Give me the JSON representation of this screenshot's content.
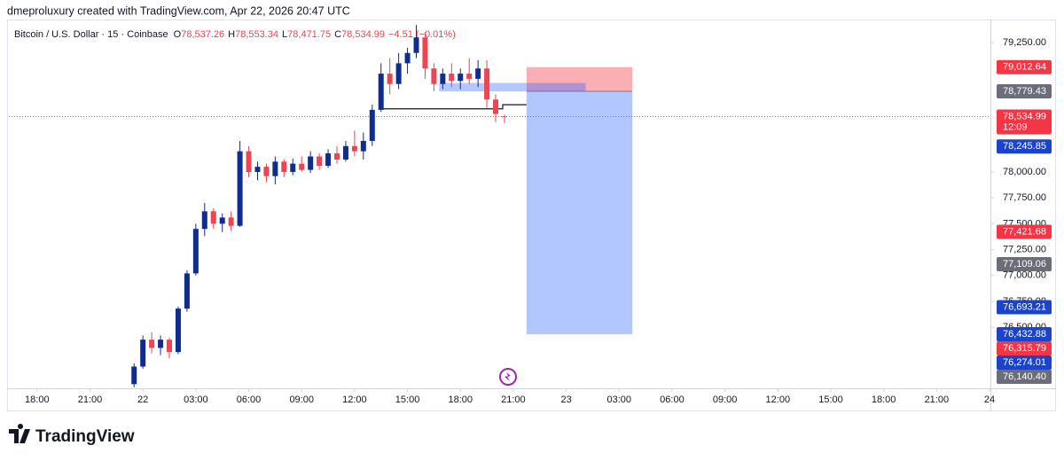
{
  "header": {
    "credit": "dmeproluxury created with TradingView.com, Apr 22, 2026 20:47 UTC"
  },
  "footer": {
    "brand": "TradingView"
  },
  "chart_data": {
    "type": "candlestick",
    "symbol": "Bitcoin / U.S. Dollar · 15 · Coinbase",
    "ohlc_legend": [
      {
        "key": "O",
        "value": "78,537.26"
      },
      {
        "key": "H",
        "value": "78,553.34"
      },
      {
        "key": "L",
        "value": "78,471.75"
      },
      {
        "key": "C",
        "value": "78,534.99"
      }
    ],
    "change": "−4.51 (−0.01%)",
    "up_color": "#0f2d8f",
    "down_color": "#ef4451",
    "x": [
      5.5,
      6,
      6.5,
      7,
      7.5,
      8,
      8.5,
      9,
      9.5,
      10,
      10.5,
      11,
      11.5,
      12,
      12.5,
      13,
      13.5,
      14,
      14.5,
      15,
      15.5,
      16,
      16.5,
      17,
      17.5,
      18,
      18.5,
      19,
      19.5,
      20,
      20.5,
      21,
      21.5,
      22,
      22.5,
      23,
      23.5,
      24,
      24.5,
      25,
      25.5,
      26,
      26.5
    ],
    "candles": [
      [
        75950,
        76150,
        75920,
        76120
      ],
      [
        76120,
        76420,
        76100,
        76380
      ],
      [
        76380,
        76450,
        76250,
        76300
      ],
      [
        76300,
        76420,
        76230,
        76380
      ],
      [
        76380,
        76400,
        76200,
        76260
      ],
      [
        76260,
        76700,
        76240,
        76680
      ],
      [
        76680,
        77050,
        76650,
        77020
      ],
      [
        77020,
        77500,
        77000,
        77450
      ],
      [
        77450,
        77700,
        77380,
        77620
      ],
      [
        77620,
        77650,
        77450,
        77500
      ],
      [
        77500,
        77600,
        77420,
        77560
      ],
      [
        77560,
        77620,
        77430,
        77480
      ],
      [
        77480,
        78300,
        77470,
        78200
      ],
      [
        78200,
        78250,
        77950,
        78000
      ],
      [
        78000,
        78100,
        77920,
        78050
      ],
      [
        78050,
        78080,
        77900,
        77960
      ],
      [
        77960,
        78150,
        77880,
        78100
      ],
      [
        78100,
        78120,
        77950,
        78000
      ],
      [
        78000,
        78130,
        77970,
        78080
      ],
      [
        78080,
        78150,
        78000,
        78020
      ],
      [
        78020,
        78200,
        77990,
        78150
      ],
      [
        78150,
        78180,
        78020,
        78060
      ],
      [
        78060,
        78220,
        78040,
        78180
      ],
      [
        78180,
        78250,
        78080,
        78120
      ],
      [
        78120,
        78300,
        78100,
        78250
      ],
      [
        78250,
        78400,
        78150,
        78200
      ],
      [
        78200,
        78380,
        78120,
        78300
      ],
      [
        78300,
        78650,
        78250,
        78600
      ],
      [
        78600,
        79050,
        78580,
        78950
      ],
      [
        78950,
        79100,
        78750,
        78850
      ],
      [
        78850,
        79150,
        78800,
        79050
      ],
      [
        79050,
        79200,
        78950,
        79150
      ],
      [
        79150,
        79420,
        79100,
        79300
      ],
      [
        79300,
        79350,
        78900,
        79000
      ],
      [
        79000,
        79050,
        78780,
        78850
      ],
      [
        78850,
        79000,
        78800,
        78950
      ],
      [
        78950,
        79050,
        78820,
        78880
      ],
      [
        78880,
        79000,
        78800,
        78950
      ],
      [
        78950,
        79100,
        78850,
        78900
      ],
      [
        78900,
        79080,
        78820,
        79000
      ],
      [
        79000,
        79080,
        78620,
        78700
      ],
      [
        78700,
        78750,
        78480,
        78560
      ],
      [
        78537.26,
        78553.34,
        78471.75,
        78534.99
      ]
    ],
    "last_price": 78534.99,
    "position": {
      "entry": 78779.43,
      "stop": 79012.64,
      "target": 76432.88,
      "x": [
        27.75,
        33.75
      ]
    },
    "zone": {
      "x": [
        22.8,
        31.1
      ],
      "y": [
        78779.43,
        78860
      ]
    },
    "step_line": {
      "x": [
        19.5,
        26.4,
        26.4,
        27.75
      ],
      "y": [
        78610,
        78610,
        78650,
        78650
      ]
    },
    "xlim": [
      -1.6,
      54.05
    ],
    "ylim": [
      75910,
      79473
    ],
    "xticks": [
      {
        "value": 0,
        "label": "18:00"
      },
      {
        "value": 3,
        "label": "21:00"
      },
      {
        "value": 6,
        "label": "22"
      },
      {
        "value": 9,
        "label": "03:00"
      },
      {
        "value": 12,
        "label": "06:00"
      },
      {
        "value": 15,
        "label": "09:00"
      },
      {
        "value": 18,
        "label": "12:00"
      },
      {
        "value": 21,
        "label": "15:00"
      },
      {
        "value": 24,
        "label": "18:00"
      },
      {
        "value": 27,
        "label": "21:00"
      },
      {
        "value": 30,
        "label": "23"
      },
      {
        "value": 33,
        "label": "03:00"
      },
      {
        "value": 36,
        "label": "06:00"
      },
      {
        "value": 39,
        "label": "09:00"
      },
      {
        "value": 42,
        "label": "12:00"
      },
      {
        "value": 45,
        "label": "15:00"
      },
      {
        "value": 48,
        "label": "18:00"
      },
      {
        "value": 51,
        "label": "21:00"
      },
      {
        "value": 54,
        "label": "24"
      }
    ],
    "yticks": [
      {
        "value": 79250,
        "label": "79,250.00"
      },
      {
        "value": 78000,
        "label": "78,000.00"
      },
      {
        "value": 77750,
        "label": "77,750.00"
      },
      {
        "value": 77500,
        "label": "77,500.00"
      },
      {
        "value": 77250,
        "label": "77,250.00"
      },
      {
        "value": 77000,
        "label": "77,000.00"
      },
      {
        "value": 76750,
        "label": "76,750.00"
      },
      {
        "value": 76500,
        "label": "76,500.00"
      }
    ],
    "price_labels": [
      {
        "value": 79012.64,
        "label": "79,012.64",
        "color": "#f23645"
      },
      {
        "value": 78779.43,
        "label": "78,779.43",
        "color": "#6b6e78"
      },
      {
        "value": 78534.99,
        "label": "78,534.99",
        "countdown": "12:09",
        "color": "#f23645"
      },
      {
        "value": 78245.85,
        "label": "78,245.85",
        "color": "#1c44c8"
      },
      {
        "value": 77421.68,
        "label": "77,421.68",
        "color": "#f23645"
      },
      {
        "value": 77109.06,
        "label": "77,109.06",
        "color": "#6b6e78"
      },
      {
        "value": 76693.21,
        "label": "76,693.21",
        "color": "#1c44c8"
      },
      {
        "value": 76432.88,
        "label": "76,432.88",
        "color": "#1c44c8"
      },
      {
        "value": 76315.79,
        "label": "76,315.79",
        "color": "#f23645"
      },
      {
        "value": 76274.01,
        "label": "76,274.01",
        "color": "#1c44c8"
      },
      {
        "value": 76140.4,
        "label": "76,140.40",
        "color": "#6b6e78"
      }
    ]
  }
}
